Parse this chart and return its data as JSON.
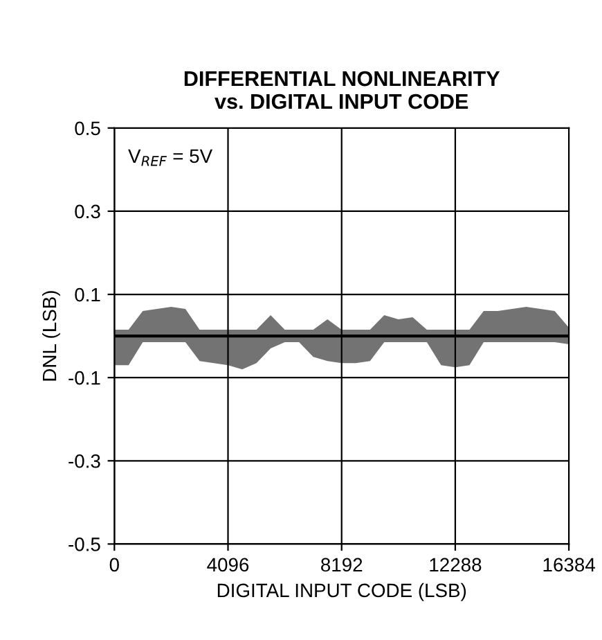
{
  "chart_data": {
    "type": "line",
    "title": "DIFFERENTIAL NONLINEARITY\nvs. DIGITAL INPUT CODE",
    "xlabel": "DIGITAL INPUT CODE (LSB)",
    "ylabel": "DNL (LSB)",
    "annotations": [
      "V$_{REF}$ = 5V"
    ],
    "x": [
      0,
      512,
      1024,
      1536,
      2048,
      2560,
      3072,
      3584,
      4096,
      4608,
      5120,
      5632,
      6144,
      6656,
      7168,
      7680,
      8192,
      8704,
      9216,
      9728,
      10240,
      10752,
      11264,
      11776,
      12288,
      12800,
      13312,
      13824,
      14336,
      14848,
      15360,
      15872,
      16384
    ],
    "series": [
      {
        "color": "#000000",
        "values": [
          0,
          0,
          0,
          0,
          0,
          0,
          0,
          0,
          0,
          0,
          0,
          0,
          0,
          0,
          0,
          0,
          0,
          0,
          0,
          0,
          0,
          0,
          0,
          0,
          0,
          0,
          0,
          0,
          0,
          0,
          0,
          0,
          0
        ],
        "lower": [
          -0.07,
          -0.07,
          -0.015,
          -0.015,
          -0.015,
          -0.015,
          -0.06,
          -0.065,
          -0.07,
          -0.08,
          -0.065,
          -0.03,
          -0.015,
          -0.015,
          -0.05,
          -0.06,
          -0.065,
          -0.065,
          -0.06,
          -0.015,
          -0.015,
          -0.015,
          -0.015,
          -0.07,
          -0.075,
          -0.07,
          -0.015,
          -0.015,
          -0.015,
          -0.015,
          -0.015,
          -0.015,
          -0.02
        ],
        "upper": [
          0.015,
          0.015,
          0.06,
          0.065,
          0.07,
          0.065,
          0.015,
          0.015,
          0.015,
          0.015,
          0.015,
          0.05,
          0.015,
          0.015,
          0.015,
          0.04,
          0.015,
          0.015,
          0.015,
          0.05,
          0.04,
          0.045,
          0.015,
          0.015,
          0.015,
          0.015,
          0.06,
          0.06,
          0.065,
          0.07,
          0.065,
          0.06,
          0.02
        ]
      }
    ],
    "xlim": [
      0,
      16384
    ],
    "xticks": [
      0,
      4096,
      8192,
      12288,
      16384
    ],
    "ylim": [
      -0.5,
      0.5
    ],
    "yticks": [
      -0.5,
      -0.3,
      -0.1,
      0.1,
      0.3,
      0.5
    ],
    "grid": true
  }
}
